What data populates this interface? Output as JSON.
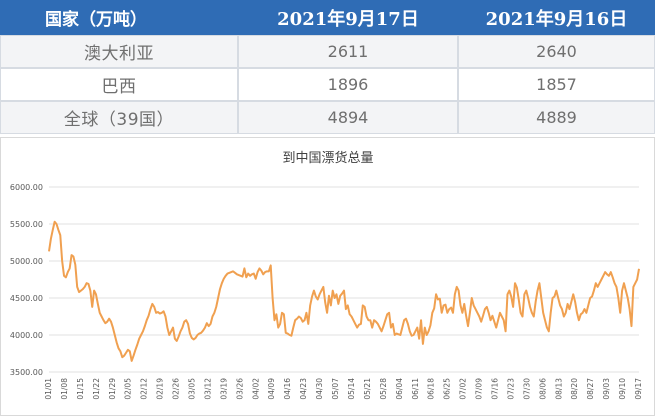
{
  "table": {
    "headers": [
      "国家（万吨）",
      "2021年9月17日",
      "2021年9月16日"
    ],
    "rows": [
      {
        "country": "澳大利亚",
        "v1": "2611",
        "v2": "2640"
      },
      {
        "country": "巴西",
        "v1": "1896",
        "v2": "1857"
      },
      {
        "country": "全球（39国）",
        "v1": "4894",
        "v2": "4889"
      }
    ]
  },
  "colors": {
    "header_bg": "#2f6cb5",
    "header_text": "#ffffff",
    "line": "#f0a050",
    "grid": "#d9d9d9"
  },
  "chart_data": {
    "type": "line",
    "title": "到中国漂货总量",
    "xlabel": "",
    "ylabel": "",
    "ylim": [
      3500,
      6000
    ],
    "yticks": [
      "3500.00",
      "4000.00",
      "4500.00",
      "5000.00",
      "5500.00",
      "6000.00"
    ],
    "xticks": [
      "01/01",
      "01/08",
      "01/15",
      "01/22",
      "01/29",
      "02/05",
      "02/12",
      "02/19",
      "02/26",
      "03/05",
      "03/12",
      "03/19",
      "03/26",
      "04/02",
      "04/09",
      "04/16",
      "04/23",
      "04/30",
      "05/07",
      "05/14",
      "05/21",
      "05/28",
      "06/04",
      "06/11",
      "06/18",
      "06/25",
      "07/02",
      "07/09",
      "07/16",
      "07/23",
      "07/30",
      "08/06",
      "08/13",
      "08/20",
      "08/27",
      "09/03",
      "09/10",
      "09/17"
    ],
    "grid": true,
    "series": [
      {
        "values": [
          5130,
          5300,
          5420,
          5530,
          5500,
          5420,
          5350,
          5000,
          4800,
          4780,
          4850,
          4900,
          5080,
          5060,
          4950,
          4650,
          4580,
          4600,
          4620,
          4650,
          4700,
          4690,
          4600,
          4380,
          4600,
          4550,
          4420,
          4300,
          4250,
          4200,
          4160,
          4180,
          4220,
          4180,
          4100,
          4000,
          3900,
          3820,
          3780,
          3700,
          3720,
          3760,
          3800,
          3780,
          3650,
          3720,
          3800,
          3870,
          3950,
          4000,
          4050,
          4120,
          4200,
          4260,
          4350,
          4420,
          4380,
          4300,
          4310,
          4290,
          4300,
          4320,
          4250,
          4100,
          4000,
          4050,
          4100,
          3950,
          3920,
          3980,
          4050,
          4100,
          4180,
          4200,
          4150,
          4020,
          3960,
          3940,
          3960,
          4000,
          4020,
          4030,
          4060,
          4100,
          4160,
          4120,
          4150,
          4250,
          4300,
          4380,
          4500,
          4620,
          4700,
          4760,
          4800,
          4830,
          4840,
          4850,
          4860,
          4840,
          4820,
          4810,
          4800,
          4790,
          4900,
          4780,
          4830,
          4800,
          4820,
          4830,
          4760,
          4850,
          4900,
          4870,
          4820,
          4850,
          4860,
          4860,
          4940,
          4500,
          4200,
          4280,
          4100,
          4150,
          4300,
          4280,
          4030,
          4020,
          4000,
          3990,
          4100,
          4200,
          4220,
          4250,
          4230,
          4180,
          4200,
          4300,
          4150,
          4400,
          4520,
          4600,
          4520,
          4480,
          4550,
          4600,
          4650,
          4440,
          4300,
          4530,
          4400,
          4600,
          4500,
          4550,
          4420,
          4530,
          4560,
          4600,
          4350,
          4400,
          4280,
          4250,
          4200,
          4150,
          4100,
          4140,
          4150,
          4400,
          4380,
          4250,
          4200,
          4200,
          4100,
          4200,
          4180,
          4150,
          4100,
          4050,
          4120,
          4200,
          4280,
          4300,
          4100,
          4150,
          4000,
          4020,
          4010,
          4000,
          4100,
          4200,
          4220,
          4150,
          4050,
          3990,
          4000,
          4050,
          4100,
          3950,
          4200,
          3880,
          4100,
          4000,
          4050,
          4130,
          4300,
          4360,
          4550,
          4480,
          4490,
          4300,
          4400,
          4410,
          4300,
          4350,
          4370,
          4300,
          4550,
          4650,
          4600,
          4400,
          4300,
          4420,
          4260,
          4120,
          4300,
          4500,
          4400,
          4350,
          4300,
          4250,
          4180,
          4260,
          4350,
          4380,
          4300,
          4200,
          4260,
          4180,
          4100,
          4200,
          4300,
          4250,
          4200,
          4050,
          4550,
          4600,
          4520,
          4380,
          4700,
          4640,
          4480,
          4300,
          4250,
          4550,
          4600,
          4500,
          4380,
          4300,
          4250,
          4450,
          4600,
          4700,
          4500,
          4300,
          4200,
          4100,
          4050,
          4300,
          4500,
          4520,
          4600,
          4500,
          4400,
          4350,
          4250,
          4300,
          4420,
          4350,
          4450,
          4550,
          4450,
          4300,
          4200,
          4280,
          4300,
          4350,
          4300,
          4400,
          4500,
          4520,
          4600,
          4700,
          4650,
          4700,
          4750,
          4800,
          4850,
          4820,
          4800,
          4850,
          4780,
          4700,
          4650,
          4500,
          4300,
          4600,
          4700,
          4600,
          4500,
          4350,
          4120,
          4650,
          4700,
          4750,
          4894
        ]
      }
    ]
  }
}
